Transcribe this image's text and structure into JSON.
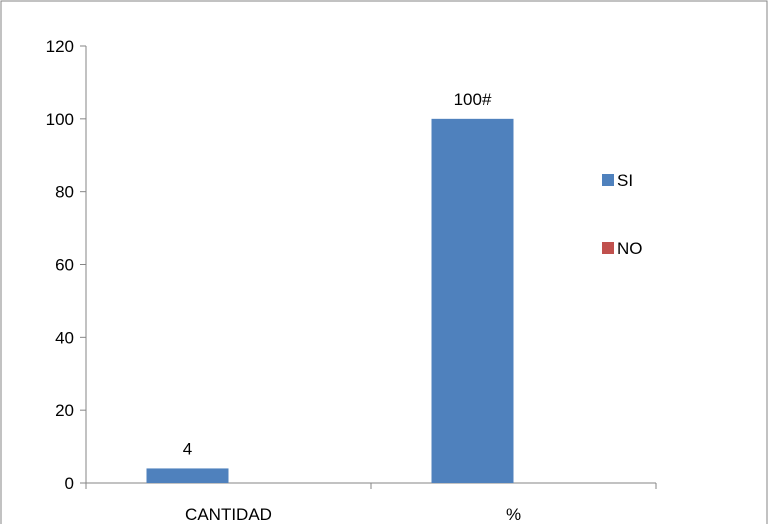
{
  "chart_data": {
    "type": "bar",
    "categories": [
      "CANTIDAD",
      "%"
    ],
    "series": [
      {
        "name": "SI",
        "values": [
          4,
          100
        ],
        "data_labels": [
          "4",
          "100#"
        ],
        "color": "#4F81BD"
      },
      {
        "name": "NO",
        "values": [
          0,
          0
        ],
        "data_labels": [
          "",
          ""
        ],
        "color": "#C0504D"
      }
    ],
    "ylim": [
      0,
      120
    ],
    "yticks": [
      0,
      20,
      40,
      60,
      80,
      100,
      120
    ],
    "ytick_labels": [
      "0",
      "20",
      "40",
      "60",
      "80",
      "100",
      "120"
    ],
    "grid": false,
    "legend_position": "right"
  }
}
